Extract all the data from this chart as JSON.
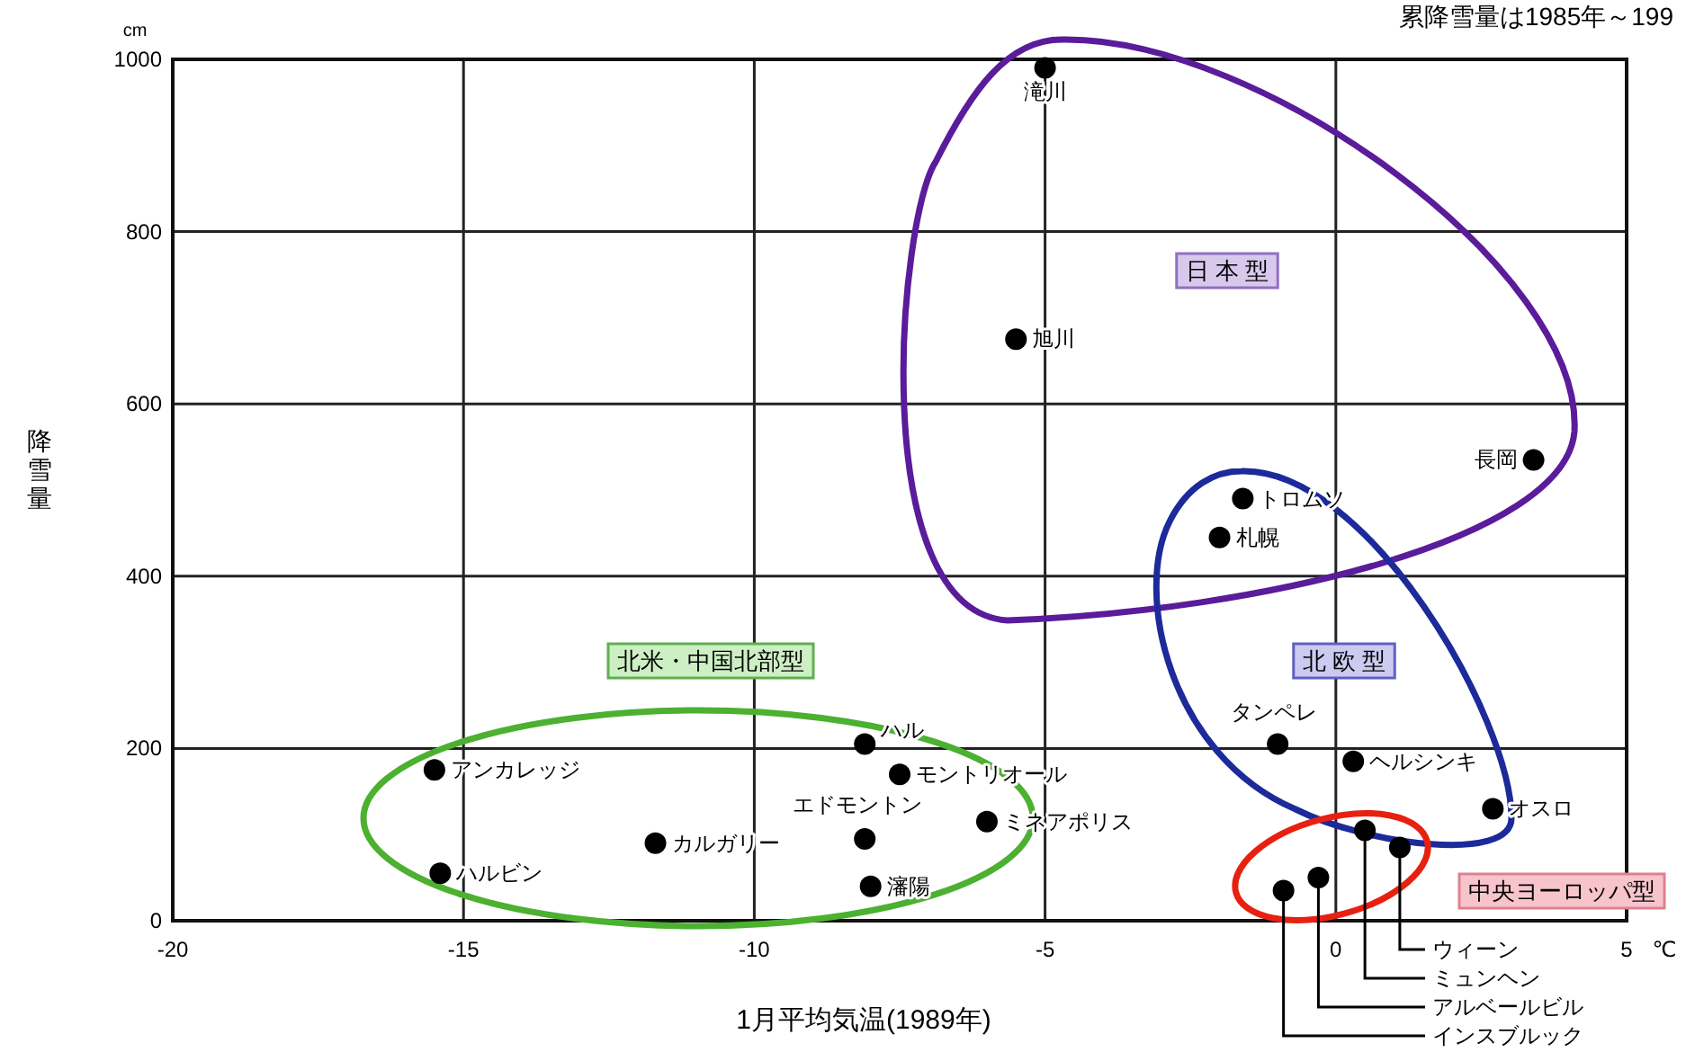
{
  "chart_data": {
    "type": "scatter",
    "xlabel": "1月平均気温(1989年)",
    "ylabel": "降雪量",
    "x": [
      -5,
      -5.5,
      3.4,
      -1.6,
      -2,
      -1,
      0.3,
      2.7,
      1.1,
      0.5,
      -0.3,
      -0.9,
      -15.5,
      -15.4,
      -11.7,
      -8.1,
      -7.5,
      -8.1,
      -8,
      -6
    ],
    "values": [
      990,
      675,
      535,
      490,
      445,
      205,
      185,
      130,
      85,
      105,
      50,
      35,
      175,
      55,
      90,
      205,
      170,
      95,
      40,
      115
    ],
    "color": "#000000",
    "marker": "circle",
    "xlim": [
      -20,
      5
    ],
    "xticks": [
      -20,
      -15,
      -10,
      -5,
      0,
      5
    ],
    "ylim": [
      0,
      1000
    ],
    "yticks": [
      0,
      200,
      400,
      600,
      800,
      1000
    ],
    "grid": true,
    "annotations": [
      "累降雪量は1985年～199",
      "cm",
      "℃",
      "日 本 型",
      "北 欧 型",
      "北米・中国北部型",
      "中央ヨーロッパ型",
      {
        "text": "滝川",
        "x": -5,
        "y": 990
      },
      {
        "text": "旭川",
        "x": -5.5,
        "y": 675
      },
      {
        "text": "長岡",
        "x": 3.4,
        "y": 535
      },
      {
        "text": "トロムソ",
        "x": -1.6,
        "y": 490
      },
      {
        "text": "札幌",
        "x": -2,
        "y": 445
      },
      {
        "text": "タンペレ",
        "x": -1,
        "y": 205
      },
      {
        "text": "ヘルシンキ",
        "x": 0.3,
        "y": 185
      },
      {
        "text": "オスロ",
        "x": 2.7,
        "y": 130
      },
      {
        "text": "ウィーン",
        "x": 1.1,
        "y": 85
      },
      {
        "text": "ミュンヘン",
        "x": 0.5,
        "y": 105
      },
      {
        "text": "アルベールビル",
        "x": -0.3,
        "y": 50
      },
      {
        "text": "インスブルック",
        "x": -0.9,
        "y": 35
      },
      {
        "text": "アンカレッジ",
        "x": -15.5,
        "y": 175
      },
      {
        "text": "ハルビン",
        "x": -15.4,
        "y": 55
      },
      {
        "text": "カルガリー",
        "x": -11.7,
        "y": 90
      },
      {
        "text": "ハル",
        "x": -8.1,
        "y": 205
      },
      {
        "text": "モントリオール",
        "x": -7.5,
        "y": 170
      },
      {
        "text": "エドモントン",
        "x": -8.1,
        "y": 95
      },
      {
        "text": "瀋陽",
        "x": -8,
        "y": 40
      },
      {
        "text": "ミネアポリス",
        "x": -6,
        "y": 115
      }
    ]
  }
}
